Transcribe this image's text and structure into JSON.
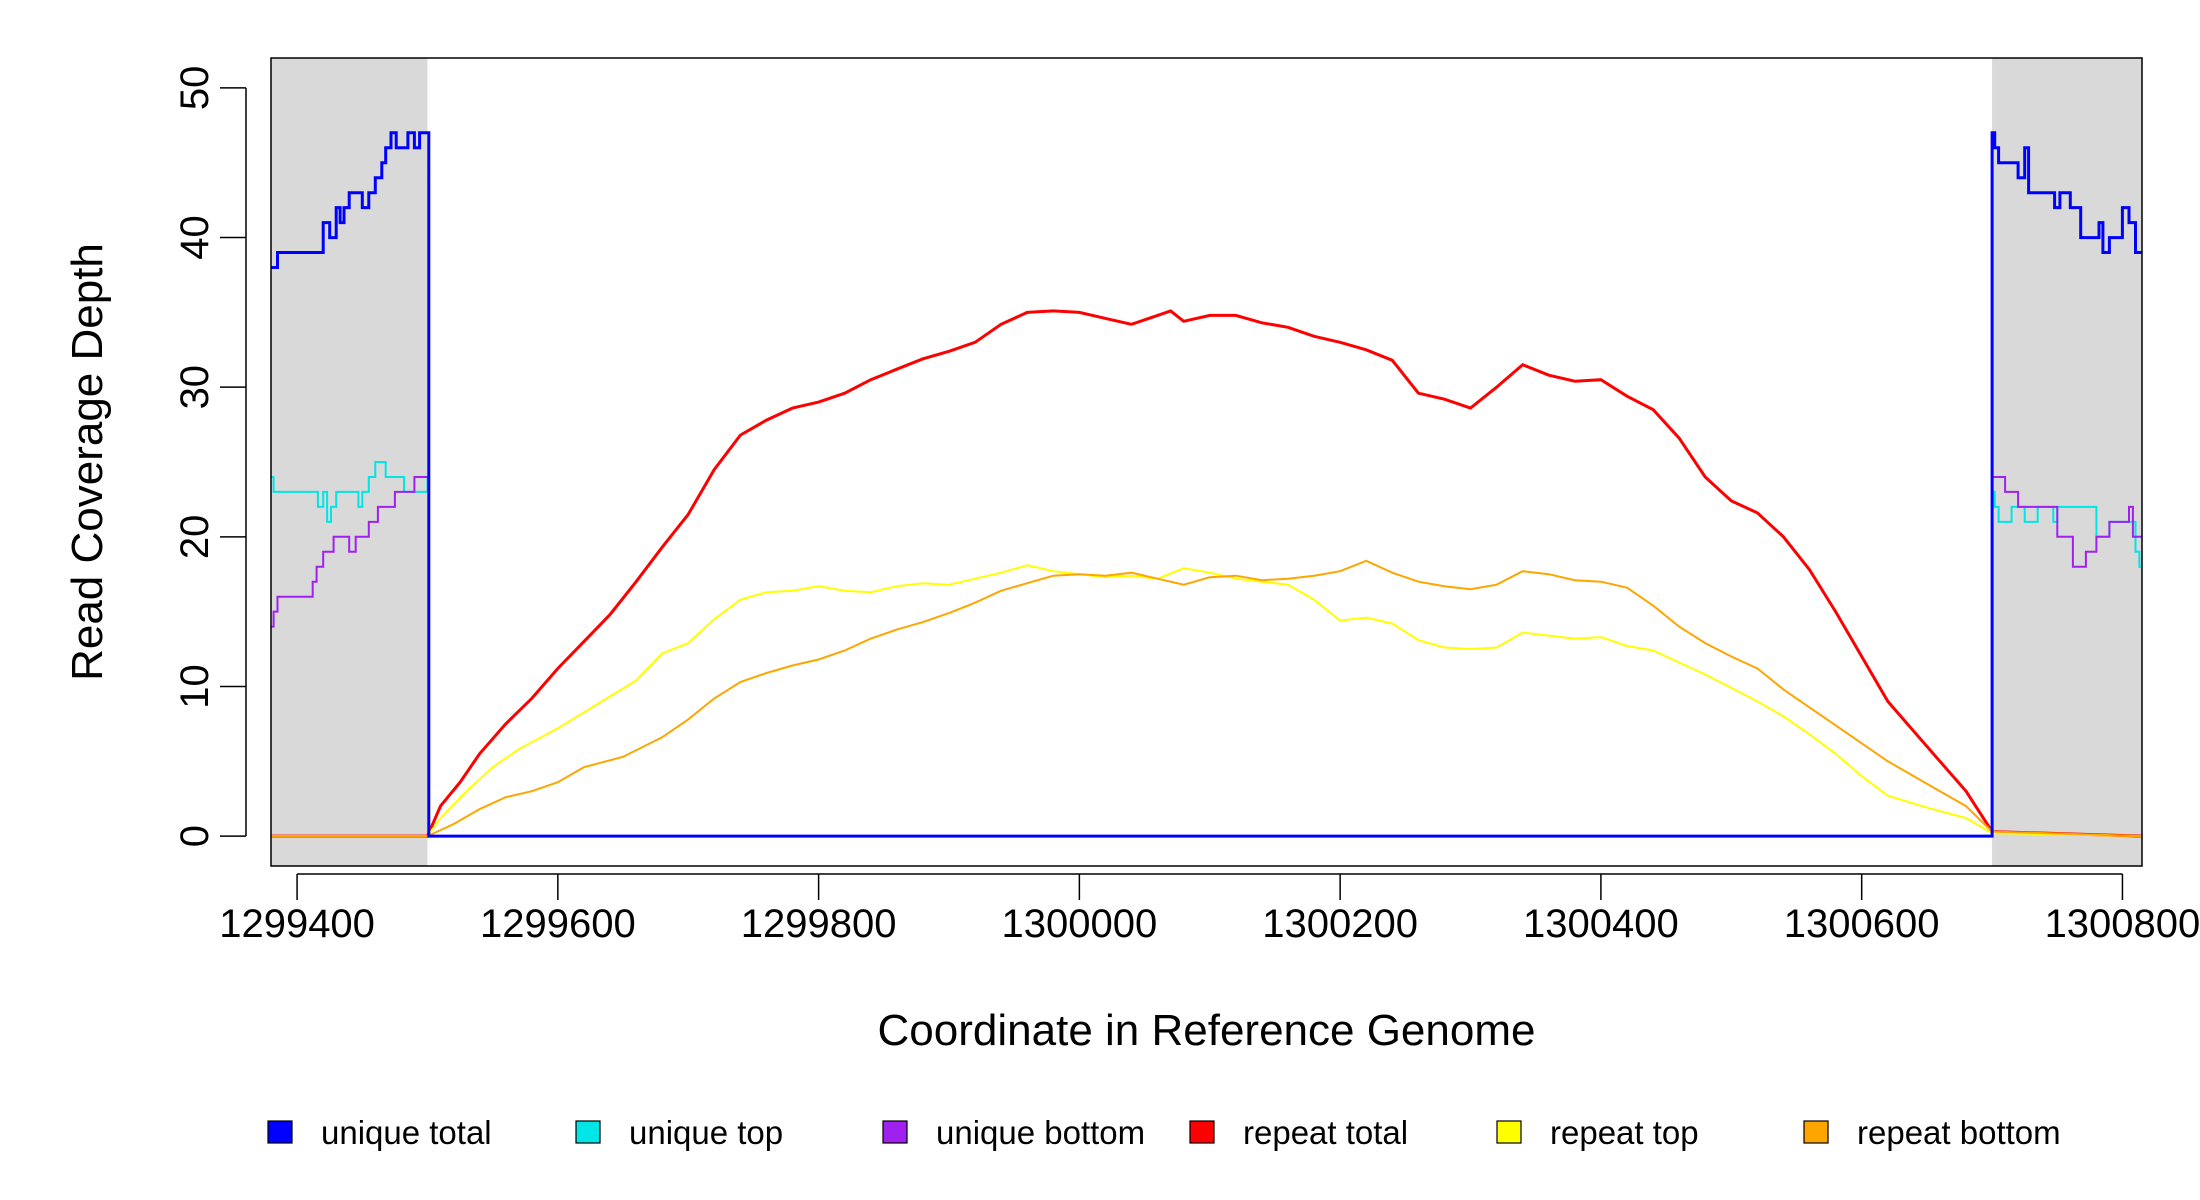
{
  "chart_data": {
    "type": "line",
    "title": "",
    "xlabel": "Coordinate in Reference Genome",
    "ylabel": "Read Coverage Depth",
    "xlim": [
      1299380,
      1300815
    ],
    "ylim": [
      -2,
      52
    ],
    "x_ticks": [
      1299400,
      1299600,
      1299800,
      1300000,
      1300200,
      1300400,
      1300600,
      1300800
    ],
    "x_tick_labels": [
      "1299400",
      "1299600",
      "1299800",
      "1300000",
      "1300200",
      "1300400",
      "1300600",
      "1300800"
    ],
    "y_ticks": [
      0,
      10,
      20,
      30,
      40,
      50
    ],
    "y_tick_labels": [
      "0",
      "10",
      "20",
      "30",
      "40",
      "50"
    ],
    "shaded_regions": [
      [
        1299380,
        1299500
      ],
      [
        1300700,
        1300815
      ]
    ],
    "shade_color": "#d9d9d9",
    "grid": false,
    "legend_placement": "bottom",
    "series": [
      {
        "name": "unique total",
        "color": "#0000ff",
        "step": true,
        "points": [
          [
            1299380,
            38
          ],
          [
            1299385,
            39
          ],
          [
            1299395,
            39
          ],
          [
            1299415,
            39
          ],
          [
            1299420,
            41
          ],
          [
            1299425,
            40
          ],
          [
            1299430,
            42
          ],
          [
            1299433,
            41
          ],
          [
            1299436,
            42
          ],
          [
            1299440,
            43
          ],
          [
            1299450,
            42
          ],
          [
            1299455,
            43
          ],
          [
            1299460,
            44
          ],
          [
            1299465,
            45
          ],
          [
            1299468,
            46
          ],
          [
            1299472,
            47
          ],
          [
            1299476,
            46
          ],
          [
            1299485,
            47
          ],
          [
            1299490,
            46
          ],
          [
            1299494,
            47
          ],
          [
            1299500,
            47
          ],
          [
            1299501,
            0
          ],
          [
            1300699,
            0
          ],
          [
            1300700,
            47
          ],
          [
            1300702,
            46
          ],
          [
            1300705,
            45
          ],
          [
            1300720,
            44
          ],
          [
            1300725,
            46
          ],
          [
            1300728,
            43
          ],
          [
            1300735,
            43
          ],
          [
            1300748,
            42
          ],
          [
            1300752,
            43
          ],
          [
            1300760,
            42
          ],
          [
            1300768,
            40
          ],
          [
            1300782,
            41
          ],
          [
            1300785,
            39
          ],
          [
            1300790,
            40
          ],
          [
            1300800,
            42
          ],
          [
            1300805,
            41
          ],
          [
            1300810,
            39
          ],
          [
            1300815,
            39
          ]
        ]
      },
      {
        "name": "unique top",
        "color": "#00e5e5",
        "step": true,
        "points": [
          [
            1299380,
            24
          ],
          [
            1299382,
            23
          ],
          [
            1299415,
            23
          ],
          [
            1299416,
            22
          ],
          [
            1299420,
            23
          ],
          [
            1299423,
            21
          ],
          [
            1299426,
            22
          ],
          [
            1299430,
            23
          ],
          [
            1299445,
            23
          ],
          [
            1299447,
            22
          ],
          [
            1299450,
            23
          ],
          [
            1299455,
            24
          ],
          [
            1299460,
            25
          ],
          [
            1299468,
            24
          ],
          [
            1299478,
            24
          ],
          [
            1299482,
            23
          ],
          [
            1299500,
            24
          ],
          [
            1299501,
            0
          ],
          [
            1300699,
            0
          ],
          [
            1300700,
            23
          ],
          [
            1300702,
            22
          ],
          [
            1300705,
            21
          ],
          [
            1300715,
            22
          ],
          [
            1300722,
            22
          ],
          [
            1300725,
            21
          ],
          [
            1300735,
            22
          ],
          [
            1300745,
            22
          ],
          [
            1300747,
            21
          ],
          [
            1300750,
            22
          ],
          [
            1300775,
            22
          ],
          [
            1300780,
            20
          ],
          [
            1300790,
            21
          ],
          [
            1300810,
            19
          ],
          [
            1300813,
            18
          ],
          [
            1300815,
            18
          ]
        ]
      },
      {
        "name": "unique bottom",
        "color": "#a020f0",
        "step": true,
        "points": [
          [
            1299380,
            14
          ],
          [
            1299382,
            15
          ],
          [
            1299385,
            16
          ],
          [
            1299390,
            16
          ],
          [
            1299412,
            17
          ],
          [
            1299415,
            18
          ],
          [
            1299420,
            19
          ],
          [
            1299428,
            20
          ],
          [
            1299440,
            19
          ],
          [
            1299445,
            20
          ],
          [
            1299450,
            20
          ],
          [
            1299455,
            21
          ],
          [
            1299462,
            22
          ],
          [
            1299475,
            23
          ],
          [
            1299490,
            24
          ],
          [
            1299500,
            24
          ],
          [
            1299501,
            0
          ],
          [
            1300699,
            0
          ],
          [
            1300700,
            24
          ],
          [
            1300710,
            23
          ],
          [
            1300718,
            23
          ],
          [
            1300720,
            22
          ],
          [
            1300740,
            22
          ],
          [
            1300750,
            20
          ],
          [
            1300762,
            18
          ],
          [
            1300772,
            19
          ],
          [
            1300780,
            20
          ],
          [
            1300790,
            21
          ],
          [
            1300805,
            22
          ],
          [
            1300808,
            20
          ],
          [
            1300815,
            20
          ]
        ]
      },
      {
        "name": "repeat total",
        "color": "#ff0000",
        "step": false,
        "points": [
          [
            1299380,
            0
          ],
          [
            1299500,
            0
          ],
          [
            1299510,
            2
          ],
          [
            1299525,
            3.6
          ],
          [
            1299540,
            5.5
          ],
          [
            1299560,
            7.5
          ],
          [
            1299580,
            9.2
          ],
          [
            1299600,
            11.2
          ],
          [
            1299620,
            13
          ],
          [
            1299640,
            14.8
          ],
          [
            1299660,
            17
          ],
          [
            1299680,
            19.3
          ],
          [
            1299700,
            21.5
          ],
          [
            1299720,
            24.5
          ],
          [
            1299740,
            26.8
          ],
          [
            1299760,
            27.8
          ],
          [
            1299780,
            28.6
          ],
          [
            1299800,
            29
          ],
          [
            1299820,
            29.6
          ],
          [
            1299840,
            30.5
          ],
          [
            1299860,
            31.2
          ],
          [
            1299880,
            31.9
          ],
          [
            1299900,
            32.4
          ],
          [
            1299920,
            33
          ],
          [
            1299940,
            34.2
          ],
          [
            1299960,
            35
          ],
          [
            1299980,
            35.1
          ],
          [
            1300000,
            35
          ],
          [
            1300020,
            34.6
          ],
          [
            1300040,
            34.2
          ],
          [
            1300060,
            34.8
          ],
          [
            1300070,
            35.1
          ],
          [
            1300080,
            34.4
          ],
          [
            1300100,
            34.8
          ],
          [
            1300120,
            34.8
          ],
          [
            1300140,
            34.3
          ],
          [
            1300160,
            34
          ],
          [
            1300180,
            33.4
          ],
          [
            1300200,
            33
          ],
          [
            1300220,
            32.5
          ],
          [
            1300240,
            31.8
          ],
          [
            1300260,
            29.6
          ],
          [
            1300280,
            29.2
          ],
          [
            1300300,
            28.6
          ],
          [
            1300320,
            30
          ],
          [
            1300340,
            31.5
          ],
          [
            1300360,
            30.8
          ],
          [
            1300380,
            30.4
          ],
          [
            1300400,
            30.5
          ],
          [
            1300420,
            29.4
          ],
          [
            1300440,
            28.5
          ],
          [
            1300460,
            26.6
          ],
          [
            1300480,
            24
          ],
          [
            1300500,
            22.4
          ],
          [
            1300520,
            21.6
          ],
          [
            1300540,
            20
          ],
          [
            1300560,
            17.8
          ],
          [
            1300580,
            15
          ],
          [
            1300600,
            12
          ],
          [
            1300620,
            9
          ],
          [
            1300640,
            7
          ],
          [
            1300660,
            5
          ],
          [
            1300680,
            3
          ],
          [
            1300700,
            0.3
          ],
          [
            1300815,
            0
          ]
        ]
      },
      {
        "name": "repeat top",
        "color": "#ffff00",
        "step": false,
        "points": [
          [
            1299380,
            0
          ],
          [
            1299500,
            0
          ],
          [
            1299510,
            1.2
          ],
          [
            1299530,
            3
          ],
          [
            1299550,
            4.6
          ],
          [
            1299570,
            5.8
          ],
          [
            1299600,
            7.2
          ],
          [
            1299630,
            8.8
          ],
          [
            1299660,
            10.4
          ],
          [
            1299680,
            12.2
          ],
          [
            1299700,
            12.9
          ],
          [
            1299720,
            14.5
          ],
          [
            1299740,
            15.8
          ],
          [
            1299760,
            16.3
          ],
          [
            1299780,
            16.4
          ],
          [
            1299800,
            16.7
          ],
          [
            1299820,
            16.4
          ],
          [
            1299840,
            16.3
          ],
          [
            1299860,
            16.7
          ],
          [
            1299880,
            16.9
          ],
          [
            1299900,
            16.8
          ],
          [
            1299920,
            17.2
          ],
          [
            1299940,
            17.6
          ],
          [
            1299960,
            18.1
          ],
          [
            1299980,
            17.7
          ],
          [
            1300000,
            17.5
          ],
          [
            1300020,
            17.3
          ],
          [
            1300040,
            17.4
          ],
          [
            1300060,
            17.2
          ],
          [
            1300080,
            17.9
          ],
          [
            1300100,
            17.6
          ],
          [
            1300120,
            17.2
          ],
          [
            1300140,
            17
          ],
          [
            1300160,
            16.8
          ],
          [
            1300180,
            15.8
          ],
          [
            1300200,
            14.4
          ],
          [
            1300220,
            14.6
          ],
          [
            1300240,
            14.2
          ],
          [
            1300260,
            13.1
          ],
          [
            1300280,
            12.6
          ],
          [
            1300300,
            12.5
          ],
          [
            1300320,
            12.6
          ],
          [
            1300340,
            13.6
          ],
          [
            1300360,
            13.4
          ],
          [
            1300380,
            13.2
          ],
          [
            1300400,
            13.3
          ],
          [
            1300420,
            12.7
          ],
          [
            1300440,
            12.4
          ],
          [
            1300460,
            11.6
          ],
          [
            1300480,
            10.8
          ],
          [
            1300500,
            9.9
          ],
          [
            1300520,
            9
          ],
          [
            1300540,
            8
          ],
          [
            1300560,
            6.8
          ],
          [
            1300580,
            5.5
          ],
          [
            1300600,
            4
          ],
          [
            1300620,
            2.7
          ],
          [
            1300650,
            1.9
          ],
          [
            1300680,
            1.2
          ],
          [
            1300700,
            0.2
          ],
          [
            1300815,
            0
          ]
        ]
      },
      {
        "name": "repeat bottom",
        "color": "#ffa500",
        "step": false,
        "points": [
          [
            1299380,
            0
          ],
          [
            1299500,
            0
          ],
          [
            1299520,
            0.8
          ],
          [
            1299540,
            1.8
          ],
          [
            1299560,
            2.6
          ],
          [
            1299580,
            3
          ],
          [
            1299600,
            3.6
          ],
          [
            1299620,
            4.6
          ],
          [
            1299650,
            5.3
          ],
          [
            1299680,
            6.6
          ],
          [
            1299700,
            7.8
          ],
          [
            1299720,
            9.2
          ],
          [
            1299740,
            10.3
          ],
          [
            1299760,
            10.9
          ],
          [
            1299780,
            11.4
          ],
          [
            1299800,
            11.8
          ],
          [
            1299820,
            12.4
          ],
          [
            1299840,
            13.2
          ],
          [
            1299860,
            13.8
          ],
          [
            1299880,
            14.3
          ],
          [
            1299900,
            14.9
          ],
          [
            1299920,
            15.6
          ],
          [
            1299940,
            16.4
          ],
          [
            1299960,
            16.9
          ],
          [
            1299980,
            17.4
          ],
          [
            1300000,
            17.5
          ],
          [
            1300020,
            17.4
          ],
          [
            1300040,
            17.6
          ],
          [
            1300060,
            17.2
          ],
          [
            1300080,
            16.8
          ],
          [
            1300100,
            17.3
          ],
          [
            1300120,
            17.4
          ],
          [
            1300140,
            17.1
          ],
          [
            1300160,
            17.2
          ],
          [
            1300180,
            17.4
          ],
          [
            1300200,
            17.7
          ],
          [
            1300220,
            18.4
          ],
          [
            1300240,
            17.6
          ],
          [
            1300260,
            17
          ],
          [
            1300280,
            16.7
          ],
          [
            1300300,
            16.5
          ],
          [
            1300320,
            16.8
          ],
          [
            1300340,
            17.7
          ],
          [
            1300360,
            17.5
          ],
          [
            1300380,
            17.1
          ],
          [
            1300400,
            17
          ],
          [
            1300420,
            16.6
          ],
          [
            1300440,
            15.4
          ],
          [
            1300460,
            14
          ],
          [
            1300480,
            12.9
          ],
          [
            1300500,
            12
          ],
          [
            1300520,
            11.2
          ],
          [
            1300540,
            9.8
          ],
          [
            1300560,
            8.6
          ],
          [
            1300580,
            7.4
          ],
          [
            1300600,
            6.2
          ],
          [
            1300620,
            5
          ],
          [
            1300640,
            4
          ],
          [
            1300660,
            3
          ],
          [
            1300680,
            2
          ],
          [
            1300700,
            0.3
          ],
          [
            1300815,
            0
          ]
        ]
      }
    ]
  }
}
